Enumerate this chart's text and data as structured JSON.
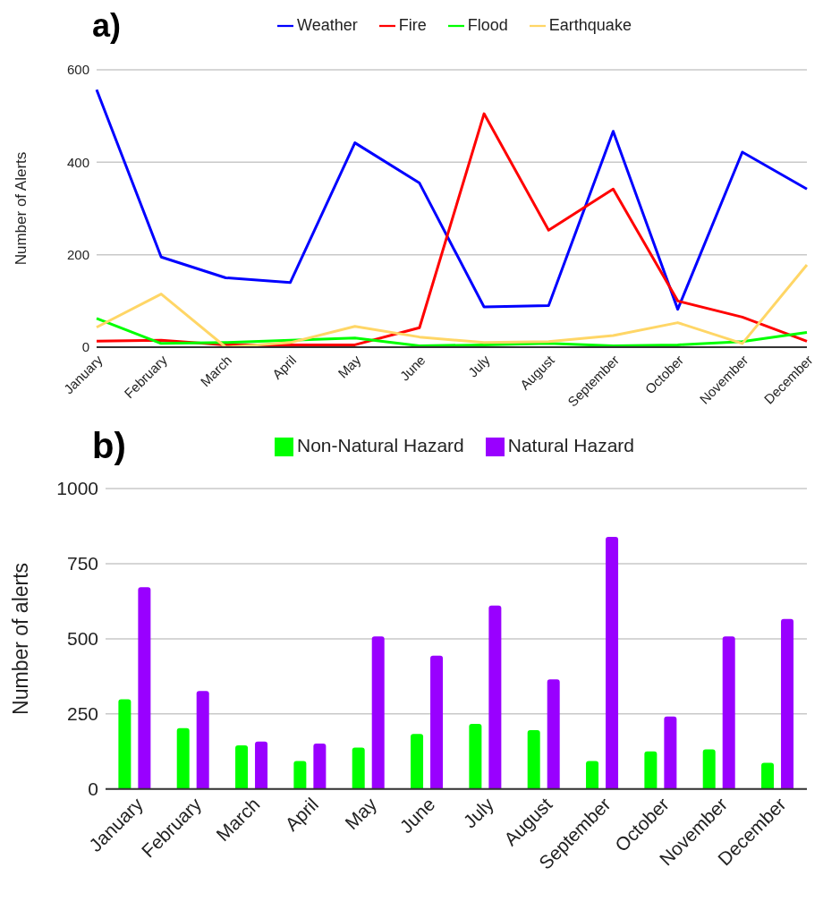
{
  "chart_data": [
    {
      "type": "line",
      "title": "a)",
      "ylabel": "Number of Alerts",
      "categories": [
        "January",
        "February",
        "March",
        "April",
        "May",
        "June",
        "July",
        "August",
        "September",
        "October",
        "November",
        "December"
      ],
      "series": [
        {
          "name": "Weather",
          "color": "#0000ff",
          "values": [
            557,
            195,
            150,
            140,
            442,
            355,
            87,
            90,
            467,
            82,
            422,
            342
          ]
        },
        {
          "name": "Fire",
          "color": "#ff0000",
          "values": [
            13,
            15,
            5,
            5,
            5,
            42,
            505,
            253,
            342,
            100,
            65,
            13
          ]
        },
        {
          "name": "Flood",
          "color": "#00ff00",
          "values": [
            62,
            8,
            10,
            15,
            20,
            3,
            5,
            8,
            3,
            5,
            12,
            32
          ]
        },
        {
          "name": "Earthquake",
          "color": "#ffd666",
          "values": [
            43,
            115,
            0,
            10,
            45,
            22,
            10,
            12,
            25,
            53,
            8,
            178
          ]
        }
      ],
      "ylim": [
        0,
        600
      ],
      "yticks": [
        0,
        200,
        400,
        600
      ],
      "grid": "y",
      "legend": "top",
      "marker": "none"
    },
    {
      "type": "bar",
      "title": "b)",
      "ylabel": "Number of alerts",
      "categories": [
        "January",
        "February",
        "March",
        "April",
        "May",
        "June",
        "July",
        "August",
        "September",
        "October",
        "November",
        "December"
      ],
      "series": [
        {
          "name": "Non-Natural Hazard",
          "color": "#00ff00",
          "values": [
            299,
            203,
            145,
            93,
            138,
            183,
            217,
            196,
            93,
            125,
            132,
            87
          ]
        },
        {
          "name": "Natural Hazard",
          "color": "#9900ff",
          "values": [
            672,
            326,
            158,
            151,
            508,
            444,
            611,
            365,
            839,
            241,
            508,
            566
          ]
        }
      ],
      "ylim": [
        0,
        1000
      ],
      "yticks": [
        0,
        250,
        500,
        750,
        1000
      ],
      "grid": "y",
      "legend": "top"
    }
  ]
}
